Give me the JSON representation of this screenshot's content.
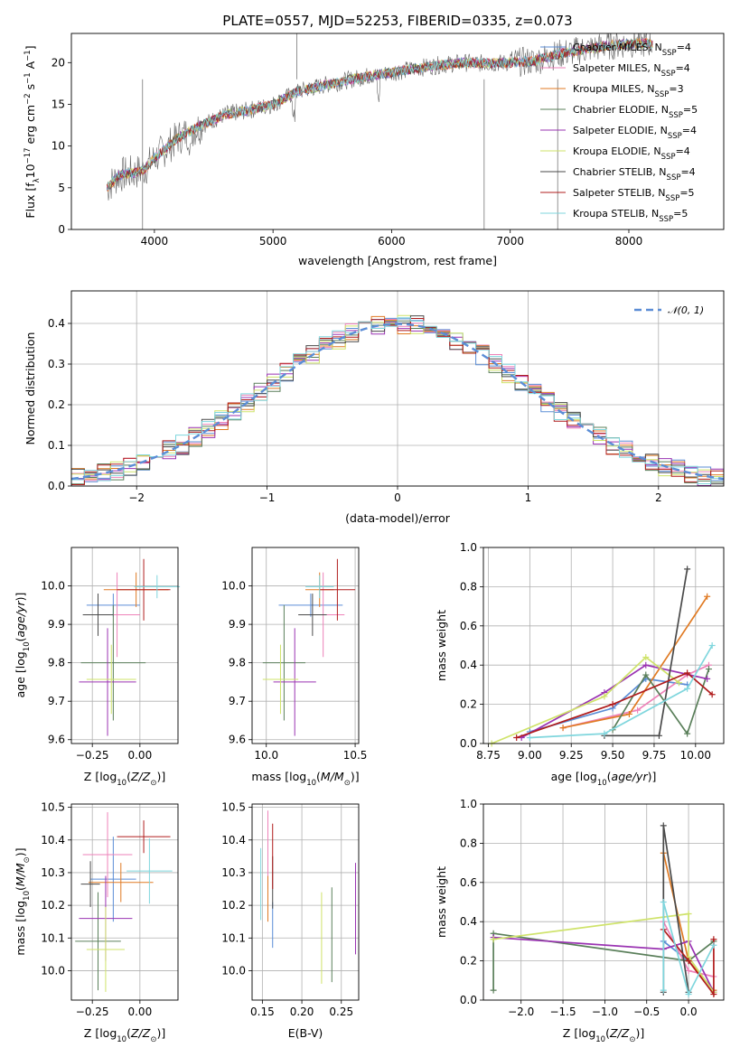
{
  "title": "PLATE=0557, MJD=52253, FIBERID=0335, z=0.073",
  "colors": {
    "Chabrier MILES": "#5b8dd6",
    "Salpeter MILES": "#ee82b9",
    "Kroupa MILES": "#e07a23",
    "Chabrier ELODIE": "#5a7f5a",
    "Salpeter ELODIE": "#9a33b2",
    "Kroupa ELODIE": "#cfe36a",
    "Chabrier STELIB": "#4a4a4a",
    "Salpeter STELIB": "#b01c1c",
    "Kroupa STELIB": "#7fd6dd"
  },
  "chart_data": [
    {
      "id": "spectrum",
      "type": "line",
      "xlabel": "wavelength [Angstrom, rest frame]",
      "ylabel": "Flux [f_λ10^-17 erg cm^-2 s^-1 A^-1]",
      "xlim": [
        3300,
        8800
      ],
      "ylim": [
        0,
        23.5
      ],
      "xticks": [
        4000,
        5000,
        6000,
        7000,
        8000
      ],
      "yticks": [
        0,
        5,
        10,
        15,
        20
      ],
      "legend_position": "right",
      "legend": [
        {
          "label": "Chabrier MILES",
          "nssp": "4"
        },
        {
          "label": "Salpeter MILES",
          "nssp": "4"
        },
        {
          "label": "Kroupa MILES",
          "nssp": "3"
        },
        {
          "label": "Chabrier ELODIE",
          "nssp": "5"
        },
        {
          "label": "Salpeter ELODIE",
          "nssp": "4"
        },
        {
          "label": "Kroupa ELODIE",
          "nssp": "4"
        },
        {
          "label": "Chabrier STELIB",
          "nssp": "4"
        },
        {
          "label": "Salpeter STELIB",
          "nssp": "5"
        },
        {
          "label": "Kroupa STELIB",
          "nssp": "5"
        }
      ],
      "continuum": [
        [
          3600,
          5
        ],
        [
          3700,
          6.5
        ],
        [
          3900,
          7
        ],
        [
          4000,
          8.5
        ],
        [
          4200,
          11
        ],
        [
          4400,
          12.5
        ],
        [
          4600,
          13.8
        ],
        [
          4800,
          14.3
        ],
        [
          5000,
          15
        ],
        [
          5200,
          16.5
        ],
        [
          5400,
          17.2
        ],
        [
          5600,
          17.8
        ],
        [
          5800,
          18.4
        ],
        [
          6000,
          18.8
        ],
        [
          6200,
          19.3
        ],
        [
          6400,
          19.7
        ],
        [
          6600,
          20
        ],
        [
          6800,
          19.9
        ],
        [
          7000,
          20
        ],
        [
          7200,
          20.2
        ],
        [
          7400,
          21
        ],
        [
          7600,
          21.5
        ],
        [
          7800,
          22
        ],
        [
          8000,
          22.3
        ],
        [
          8200,
          22.3
        ]
      ],
      "spikes": [
        [
          5200,
          23.5
        ],
        [
          3900,
          0
        ],
        [
          6780,
          0
        ],
        [
          7400,
          0
        ]
      ]
    },
    {
      "id": "residuals",
      "type": "bar",
      "xlabel": "(data-model)/error",
      "ylabel": "Normed distribution",
      "xlim": [
        -2.5,
        2.5
      ],
      "ylim": [
        0,
        0.48
      ],
      "xticks": [
        -2,
        -1,
        0,
        1,
        2
      ],
      "yticks": [
        0.0,
        0.1,
        0.2,
        0.3,
        0.4
      ],
      "legend": "𝒩(0, 1)",
      "bin_width": 0.1
    },
    {
      "id": "age_vs_Z",
      "type": "scatter",
      "xlabel": "Z [log10(Z/Z⊙)]",
      "ylabel": "age  [log10(age/yr)]",
      "xlim": [
        -0.36,
        0.2
      ],
      "ylim": [
        9.59,
        10.1
      ],
      "xticks": [
        -0.25,
        0.0
      ],
      "yticks": [
        9.6,
        9.7,
        9.8,
        9.9,
        10.0
      ],
      "points": [
        {
          "s": "Chabrier MILES",
          "x": -0.14,
          "xe": 0.14,
          "y": 9.95,
          "ye": 0.03
        },
        {
          "s": "Salpeter MILES",
          "x": -0.12,
          "xe": 0.12,
          "y": 9.925,
          "ye": 0.11
        },
        {
          "s": "Kroupa MILES",
          "x": -0.02,
          "xe": 0.17,
          "y": 9.99,
          "ye": 0.045
        },
        {
          "s": "Chabrier ELODIE",
          "x": -0.14,
          "xe": 0.17,
          "y": 9.8,
          "ye": 0.15
        },
        {
          "s": "Salpeter ELODIE",
          "x": -0.17,
          "xe": 0.15,
          "y": 9.75,
          "ye": 0.14
        },
        {
          "s": "Kroupa ELODIE",
          "x": -0.15,
          "xe": 0.13,
          "y": 9.757,
          "ye": 0.09
        },
        {
          "s": "Chabrier STELIB",
          "x": -0.22,
          "xe": 0.08,
          "y": 9.925,
          "ye": 0.055
        },
        {
          "s": "Salpeter STELIB",
          "x": 0.02,
          "xe": 0.14,
          "y": 9.99,
          "ye": 0.08
        },
        {
          "s": "Kroupa STELIB",
          "x": 0.09,
          "xe": 0.12,
          "y": 9.998,
          "ye": 0.03
        }
      ]
    },
    {
      "id": "age_vs_mass",
      "type": "scatter",
      "xlabel": "mass [log10(M/M⊙)]",
      "ylabel": "",
      "xlim": [
        9.92,
        10.52
      ],
      "ylim": [
        9.59,
        10.1
      ],
      "xticks": [
        10.0,
        10.5
      ],
      "yticks": [
        9.6,
        9.7,
        9.8,
        9.9,
        10.0
      ],
      "points": [
        {
          "s": "Chabrier MILES",
          "x": 10.25,
          "xe": 0.18,
          "y": 9.95,
          "ye": 0.03
        },
        {
          "s": "Salpeter MILES",
          "x": 10.32,
          "xe": 0.12,
          "y": 9.925,
          "ye": 0.11
        },
        {
          "s": "Kroupa MILES",
          "x": 10.3,
          "xe": 0.08,
          "y": 9.99,
          "ye": 0.045
        },
        {
          "s": "Chabrier ELODIE",
          "x": 10.1,
          "xe": 0.12,
          "y": 9.8,
          "ye": 0.15
        },
        {
          "s": "Salpeter ELODIE",
          "x": 10.16,
          "xe": 0.12,
          "y": 9.75,
          "ye": 0.14
        },
        {
          "s": "Kroupa ELODIE",
          "x": 10.08,
          "xe": 0.1,
          "y": 9.757,
          "ye": 0.09
        },
        {
          "s": "Chabrier STELIB",
          "x": 10.26,
          "xe": 0.08,
          "y": 9.925,
          "ye": 0.055
        },
        {
          "s": "Salpeter STELIB",
          "x": 10.4,
          "xe": 0.1,
          "y": 9.99,
          "ye": 0.08
        },
        {
          "s": "Kroupa STELIB",
          "x": 10.3,
          "xe": 0.08,
          "y": 9.998,
          "ye": 0.03
        }
      ]
    },
    {
      "id": "weight_vs_age",
      "type": "line",
      "xlabel": "age  [log10(age/yr)]",
      "ylabel": "mass weight",
      "xlim": [
        8.72,
        10.17
      ],
      "ylim": [
        0,
        1.0
      ],
      "xticks": [
        8.75,
        9.0,
        9.25,
        9.5,
        9.75,
        10.0
      ],
      "yticks": [
        0.0,
        0.2,
        0.4,
        0.6,
        0.8,
        1.0
      ],
      "series": [
        {
          "s": "Chabrier MILES",
          "x": [
            9.0,
            9.5,
            9.7,
            9.95
          ],
          "y": [
            0.06,
            0.18,
            0.33,
            0.3
          ]
        },
        {
          "s": "Salpeter MILES",
          "x": [
            9.2,
            9.65,
            9.95,
            10.08
          ],
          "y": [
            0.08,
            0.17,
            0.35,
            0.4
          ]
        },
        {
          "s": "Kroupa MILES",
          "x": [
            9.2,
            9.6,
            10.07
          ],
          "y": [
            0.08,
            0.15,
            0.75
          ]
        },
        {
          "s": "Chabrier ELODIE",
          "x": [
            9.5,
            9.7,
            9.95,
            10.08
          ],
          "y": [
            0.07,
            0.35,
            0.05,
            0.38
          ]
        },
        {
          "s": "Salpeter ELODIE",
          "x": [
            8.95,
            9.45,
            9.7,
            10.07
          ],
          "y": [
            0.03,
            0.26,
            0.4,
            0.33
          ]
        },
        {
          "s": "Kroupa ELODIE",
          "x": [
            8.77,
            9.45,
            9.7,
            9.9
          ],
          "y": [
            0.0,
            0.24,
            0.44,
            0.31
          ]
        },
        {
          "s": "Chabrier STELIB",
          "x": [
            9.45,
            9.78,
            9.95
          ],
          "y": [
            0.04,
            0.04,
            0.89
          ]
        },
        {
          "s": "Salpeter STELIB",
          "x": [
            8.92,
            9.5,
            9.95,
            10.1
          ],
          "y": [
            0.03,
            0.2,
            0.36,
            0.25
          ]
        },
        {
          "s": "Kroupa STELIB",
          "x": [
            9.0,
            9.45,
            9.95,
            10.1
          ],
          "y": [
            0.03,
            0.05,
            0.28,
            0.5
          ]
        }
      ]
    },
    {
      "id": "mass_vs_Z",
      "type": "scatter",
      "xlabel": "Z [log10(Z/Z⊙)]",
      "ylabel": "mass [log10(M/M⊙)]",
      "xlim": [
        -0.36,
        0.2
      ],
      "ylim": [
        9.91,
        10.51
      ],
      "xticks": [
        -0.25,
        0.0
      ],
      "yticks": [
        10.0,
        10.1,
        10.2,
        10.3,
        10.4,
        10.5
      ],
      "points": [
        {
          "s": "Chabrier MILES",
          "x": -0.14,
          "xe": 0.12,
          "y": 10.28,
          "ye": 0.13
        },
        {
          "s": "Salpeter MILES",
          "x": -0.17,
          "xe": 0.13,
          "y": 10.355,
          "ye": 0.13
        },
        {
          "s": "Kroupa MILES",
          "x": -0.1,
          "xe": 0.17,
          "y": 10.27,
          "ye": 0.06
        },
        {
          "s": "Chabrier ELODIE",
          "x": -0.22,
          "xe": 0.12,
          "y": 10.09,
          "ye": 0.15
        },
        {
          "s": "Salpeter ELODIE",
          "x": -0.18,
          "xe": 0.14,
          "y": 10.16,
          "ye": 0.13
        },
        {
          "s": "Kroupa ELODIE",
          "x": -0.18,
          "xe": 0.1,
          "y": 10.065,
          "ye": 0.13
        },
        {
          "s": "Chabrier STELIB",
          "x": -0.26,
          "xe": 0.05,
          "y": 10.265,
          "ye": 0.07
        },
        {
          "s": "Salpeter STELIB",
          "x": 0.02,
          "xe": 0.14,
          "y": 10.41,
          "ye": 0.05
        },
        {
          "s": "Kroupa STELIB",
          "x": 0.05,
          "xe": 0.12,
          "y": 10.305,
          "ye": 0.1
        }
      ]
    },
    {
      "id": "mass_vs_ebv",
      "type": "scatter",
      "xlabel": "E(B-V)",
      "ylabel": "",
      "xlim": [
        0.137,
        0.272
      ],
      "ylim": [
        9.91,
        10.51
      ],
      "xticks": [
        0.15,
        0.2,
        0.25
      ],
      "yticks": [
        10.0,
        10.1,
        10.2,
        10.3,
        10.4,
        10.5
      ],
      "points": [
        {
          "s": "Chabrier MILES",
          "x": 0.163,
          "xe": 0,
          "y": 10.14,
          "ye": 0.07
        },
        {
          "s": "Salpeter MILES",
          "x": 0.157,
          "xe": 0,
          "y": 10.37,
          "ye": 0.12
        },
        {
          "s": "Kroupa MILES",
          "x": 0.157,
          "xe": 0,
          "y": 10.22,
          "ye": 0.07
        },
        {
          "s": "Chabrier ELODIE",
          "x": 0.238,
          "xe": 0,
          "y": 10.11,
          "ye": 0.145
        },
        {
          "s": "Salpeter ELODIE",
          "x": 0.268,
          "xe": 0,
          "y": 10.19,
          "ye": 0.14
        },
        {
          "s": "Kroupa ELODIE",
          "x": 0.225,
          "xe": 0,
          "y": 10.1,
          "ye": 0.14
        },
        {
          "s": "Chabrier STELIB",
          "x": 0.163,
          "xe": 0,
          "y": 10.27,
          "ye": 0.08
        },
        {
          "s": "Salpeter STELIB",
          "x": 0.163,
          "xe": 0,
          "y": 10.35,
          "ye": 0.1
        },
        {
          "s": "Kroupa STELIB",
          "x": 0.148,
          "xe": 0,
          "y": 10.265,
          "ye": 0.11
        }
      ]
    },
    {
      "id": "weight_vs_Z",
      "type": "line",
      "xlabel": "Z [log10(Z/Z⊙)]",
      "ylabel": "mass weight",
      "xlim": [
        -2.45,
        0.42
      ],
      "ylim": [
        0,
        1.0
      ],
      "xticks": [
        -2.0,
        -1.5,
        -1.0,
        -0.5,
        0.0
      ],
      "yticks": [
        0.0,
        0.2,
        0.4,
        0.6,
        0.8,
        1.0
      ],
      "series": [
        {
          "s": "Chabrier MILES",
          "x": [
            -0.3,
            0.0,
            0.3
          ],
          "y": [
            0.3,
            0.2,
            0.05
          ]
        },
        {
          "s": "Salpeter MILES",
          "x": [
            -0.3,
            0.0,
            0.3
          ],
          "y": [
            0.4,
            0.15,
            0.12
          ]
        },
        {
          "s": "Kroupa MILES",
          "x": [
            -0.3,
            0.0,
            0.3
          ],
          "y": [
            0.75,
            0.2,
            0.05
          ]
        },
        {
          "s": "Chabrier ELODIE",
          "x": [
            -2.33,
            -2.33,
            0.0,
            0.3,
            0.0
          ],
          "y": [
            0.05,
            0.34,
            0.2,
            0.3,
            0.2
          ]
        },
        {
          "s": "Salpeter ELODIE",
          "x": [
            -2.33,
            -0.3,
            0.0,
            0.3
          ],
          "y": [
            0.32,
            0.26,
            0.3,
            0.04
          ]
        },
        {
          "s": "Kroupa ELODIE",
          "x": [
            -2.33,
            0.0,
            0.0,
            0.3
          ],
          "y": [
            0.31,
            0.44,
            0.22,
            0.04
          ]
        },
        {
          "s": "Chabrier STELIB",
          "x": [
            -0.3,
            -0.3,
            0.0
          ],
          "y": [
            0.04,
            0.89,
            0.04
          ]
        },
        {
          "s": "Salpeter STELIB",
          "x": [
            -0.3,
            0.0,
            0.3,
            0.3
          ],
          "y": [
            0.36,
            0.2,
            0.03,
            0.31
          ]
        },
        {
          "s": "Kroupa STELIB",
          "x": [
            -0.3,
            -0.3,
            0.0,
            0.3
          ],
          "y": [
            0.05,
            0.5,
            0.03,
            0.28
          ]
        }
      ]
    }
  ]
}
